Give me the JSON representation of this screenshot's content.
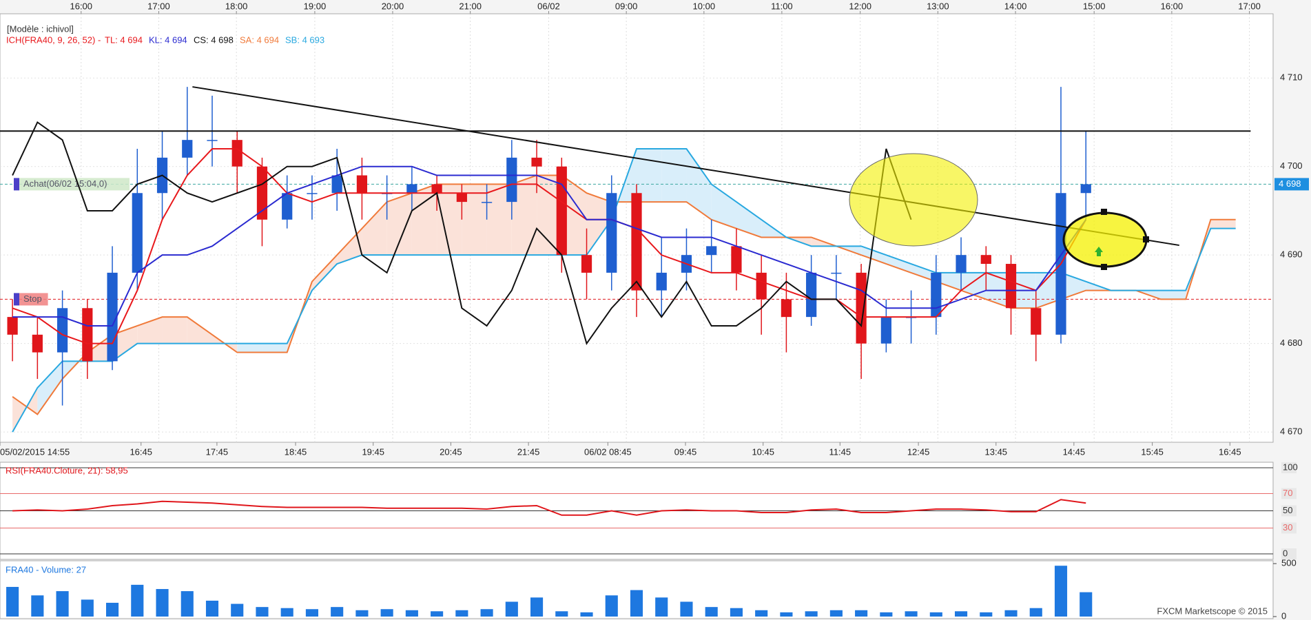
{
  "chart_data": [
    {
      "type": "candlestick",
      "subtitle": "[Modèle : ichivol]",
      "indicator": "ICH(FRA40, 9, 26, 52) -",
      "indicator_color": "#e8181c",
      "open": [
        4683,
        4681,
        4679,
        4684,
        4678,
        4688,
        4697,
        4701,
        4703,
        4703,
        4700,
        4694,
        4697,
        4697,
        4699,
        4697,
        4697,
        4698,
        4697,
        4696,
        4696,
        4701,
        4700,
        4690,
        4688,
        4697,
        4686,
        4688,
        4690,
        4691,
        4688,
        4685,
        4683,
        4688,
        4688,
        4680,
        4683,
        4683,
        4688,
        4690,
        4689,
        4684,
        4681,
        4697
      ],
      "high": [
        4685,
        4683,
        4686,
        4685,
        4691,
        4702,
        4704,
        4709,
        4708,
        4704,
        4701,
        4699,
        4699,
        4702,
        4701,
        4699,
        4700,
        4699,
        4698,
        4698,
        4703,
        4703,
        4701,
        4693,
        4699,
        4698,
        4692,
        4693,
        4694,
        4693,
        4690,
        4688,
        4690,
        4690,
        4689,
        4685,
        4686,
        4690,
        4692,
        4691,
        4690,
        4686,
        4709,
        4704
      ],
      "low": [
        4678,
        4676,
        4673,
        4676,
        4677,
        4686,
        4694,
        4699,
        4700,
        4697,
        4691,
        4693,
        4694,
        4695,
        4694,
        4694,
        4695,
        4695,
        4694,
        4694,
        4694,
        4697,
        4688,
        4685,
        4686,
        4683,
        4683,
        4686,
        4688,
        4686,
        4681,
        4679,
        4682,
        4685,
        4676,
        4679,
        4680,
        4681,
        4686,
        4686,
        4681,
        4678,
        4680,
        4694
      ],
      "close": [
        4681,
        4679,
        4684,
        4678,
        4688,
        4697,
        4701,
        4703,
        4703,
        4700,
        4694,
        4697,
        4697,
        4699,
        4697,
        4697,
        4698,
        4697,
        4696,
        4696,
        4701,
        4700,
        4690,
        4688,
        4697,
        4686,
        4688,
        4690,
        4691,
        4688,
        4685,
        4683,
        4688,
        4688,
        4680,
        4683,
        4683,
        4688,
        4690,
        4689,
        4684,
        4681,
        4697,
        4698
      ],
      "up_color": "#1f5fd0",
      "down_color": "#e0161b",
      "series": [
        {
          "name": "TL: 4 694",
          "color": "#e8181c",
          "values": [
            4684,
            4683,
            4681,
            4680,
            4680,
            4686,
            4694,
            4699,
            4702,
            4702,
            4700,
            4697,
            4696,
            4697,
            4697,
            4697,
            4697,
            4697,
            4697,
            4697,
            4698,
            4698,
            4696,
            4694,
            4694,
            4693,
            4690,
            4689,
            4688,
            4688,
            4687,
            4686,
            4685,
            4685,
            4683,
            4683,
            4683,
            4683,
            4686,
            4688,
            4687,
            4686,
            4689,
            4694
          ]
        },
        {
          "name": "KL: 4 694",
          "color": "#2a2ad0",
          "values": [
            4683,
            4683,
            4683,
            4682,
            4682,
            4688,
            4690,
            4690,
            4691,
            4693,
            4695,
            4697,
            4698,
            4699,
            4700,
            4700,
            4700,
            4699,
            4699,
            4699,
            4699,
            4699,
            4698,
            4694,
            4694,
            4693,
            4692,
            4692,
            4692,
            4691,
            4690,
            4689,
            4688,
            4687,
            4686,
            4684,
            4684,
            4684,
            4685,
            4686,
            4686,
            4686,
            4690,
            4694
          ]
        },
        {
          "name": "CS: 4 698",
          "color": "#111111",
          "values": [
            4699,
            4705,
            4703,
            4695,
            4695,
            4698,
            4699,
            4697,
            4696,
            4697,
            4698,
            4700,
            4700,
            4701,
            4690,
            4688,
            4695,
            4697,
            4684,
            4682,
            4686,
            4693,
            4690,
            4680,
            4684,
            4687,
            4683,
            4687,
            4682,
            4682,
            4684,
            4687,
            4685,
            4685,
            4682,
            4702,
            4694
          ]
        },
        {
          "name": "SA: 4 694",
          "color": "#f07a3a",
          "values": [
            4674,
            4672,
            4676,
            4679,
            4681,
            4682,
            4683,
            4683,
            4681,
            4679,
            4679,
            4679,
            4687,
            4690,
            4693,
            4696,
            4697,
            4698,
            4698,
            4698,
            4698,
            4699,
            4699,
            4697,
            4696,
            4696,
            4696,
            4696,
            4694,
            4693,
            4692,
            4692,
            4692,
            4691,
            4690,
            4689,
            4688,
            4687,
            4686,
            4685,
            4684,
            4684,
            4685,
            4686,
            4686,
            4686,
            4685,
            4685,
            4694,
            4694
          ]
        },
        {
          "name": "SB: 4 693",
          "color": "#28a8e0",
          "values": [
            4670,
            4675,
            4678,
            4678,
            4678,
            4680,
            4680,
            4680,
            4680,
            4680,
            4680,
            4680,
            4686,
            4689,
            4690,
            4690,
            4690,
            4690,
            4690,
            4690,
            4690,
            4690,
            4690,
            4690,
            4694,
            4702,
            4702,
            4702,
            4698,
            4696,
            4694,
            4692,
            4691,
            4691,
            4691,
            4690,
            4689,
            4688,
            4688,
            4688,
            4688,
            4688,
            4688,
            4687,
            4686,
            4686,
            4686,
            4686,
            4693,
            4693
          ]
        }
      ],
      "cloud_up_color": "#fbe2d9",
      "cloud_down_color": "#d9eefa",
      "xlim": [
        0,
        51
      ],
      "xticks": [
        {
          "value": 0,
          "label": "05/02/2015 14:55"
        },
        {
          "value": 5.65,
          "label": "16:45"
        },
        {
          "value": 8.69,
          "label": "17:45"
        },
        {
          "value": 11.84,
          "label": "18:45"
        },
        {
          "value": 14.95,
          "label": "19:45"
        },
        {
          "value": 18.06,
          "label": "20:45"
        },
        {
          "value": 21.17,
          "label": "21:45"
        },
        {
          "value": 24.35,
          "label": "06/02 08:45"
        },
        {
          "value": 27.46,
          "label": "09:45"
        },
        {
          "value": 30.57,
          "label": "10:45"
        },
        {
          "value": 33.65,
          "label": "11:45"
        },
        {
          "value": 36.79,
          "label": "12:45"
        },
        {
          "value": 39.9,
          "label": "13:45"
        },
        {
          "value": 43.02,
          "label": "14:45"
        },
        {
          "value": 46.16,
          "label": "15:45"
        },
        {
          "value": 49.27,
          "label": "16:45"
        }
      ],
      "x2ticks": [
        {
          "value": 3.25,
          "label": "16:00"
        },
        {
          "value": 6.36,
          "label": "17:00"
        },
        {
          "value": 9.47,
          "label": "18:00"
        },
        {
          "value": 12.61,
          "label": "19:00"
        },
        {
          "value": 15.73,
          "label": "20:00"
        },
        {
          "value": 18.84,
          "label": "21:00"
        },
        {
          "value": 21.98,
          "label": "06/02"
        },
        {
          "value": 25.09,
          "label": "09:00"
        },
        {
          "value": 28.2,
          "label": "10:00"
        },
        {
          "value": 31.32,
          "label": "11:00"
        },
        {
          "value": 34.46,
          "label": "12:00"
        },
        {
          "value": 37.57,
          "label": "13:00"
        },
        {
          "value": 40.68,
          "label": "14:00"
        },
        {
          "value": 43.83,
          "label": "15:00"
        },
        {
          "value": 46.94,
          "label": "16:00"
        },
        {
          "value": 50.05,
          "label": "17:00"
        }
      ],
      "ylim": [
        4669,
        4717.1
      ],
      "yticks": [
        {
          "value": 4670,
          "label": "4 670"
        },
        {
          "value": 4680,
          "label": "4 680"
        },
        {
          "value": 4690,
          "label": "4 690"
        },
        {
          "value": 4700,
          "label": "4 700"
        },
        {
          "value": 4710,
          "label": "4 710"
        }
      ],
      "lines": [
        {
          "x": [
            0,
            50.1
          ],
          "y": [
            4704,
            4704
          ]
        },
        {
          "x": [
            7.71,
            47.24
          ],
          "y": [
            4709,
            4691.1
          ]
        }
      ],
      "levels": [
        {
          "value": 4698,
          "label": "Achat(06/02 15:04,0)",
          "color": "#3aa6a0",
          "box": "#cfe8c8"
        },
        {
          "value": 4685,
          "label": "Stop",
          "color": "#e0161b",
          "box": "#f08080"
        }
      ],
      "price_tag": {
        "value": 4698,
        "label": "4 698",
        "color": "#1e8fe0"
      }
    },
    {
      "type": "line",
      "title": "RSI(FRA40.Cloture, 21): 58,95",
      "color": "#e0161b",
      "values": [
        50,
        51,
        50,
        52,
        56,
        58,
        61,
        60,
        59,
        57,
        55,
        54,
        54,
        54,
        54,
        53,
        53,
        53,
        53,
        52,
        55,
        56,
        45,
        45,
        50,
        45,
        50,
        51,
        50,
        50,
        48,
        48,
        51,
        52,
        48,
        48,
        50,
        52,
        52,
        51,
        49,
        49,
        63,
        59
      ],
      "ylim": [
        0,
        100
      ],
      "yticks": [
        0,
        30,
        50,
        70,
        100
      ],
      "grid_colors": [
        "#333333",
        "#e86a6a",
        "#333333",
        "#e86a6a",
        "#333333"
      ]
    },
    {
      "type": "bar",
      "title": "FRA40 - Volume: 27",
      "color": "#1e78e0",
      "credit": "FXCM Marketscope © 2015",
      "values": [
        280,
        200,
        240,
        160,
        130,
        300,
        260,
        240,
        150,
        120,
        90,
        80,
        70,
        90,
        60,
        70,
        60,
        50,
        60,
        70,
        140,
        180,
        50,
        40,
        200,
        250,
        180,
        140,
        90,
        80,
        60,
        40,
        50,
        60,
        60,
        40,
        50,
        40,
        50,
        40,
        60,
        80,
        480,
        230
      ],
      "ylim": [
        0,
        540
      ],
      "yticks": [
        0,
        500
      ]
    }
  ]
}
